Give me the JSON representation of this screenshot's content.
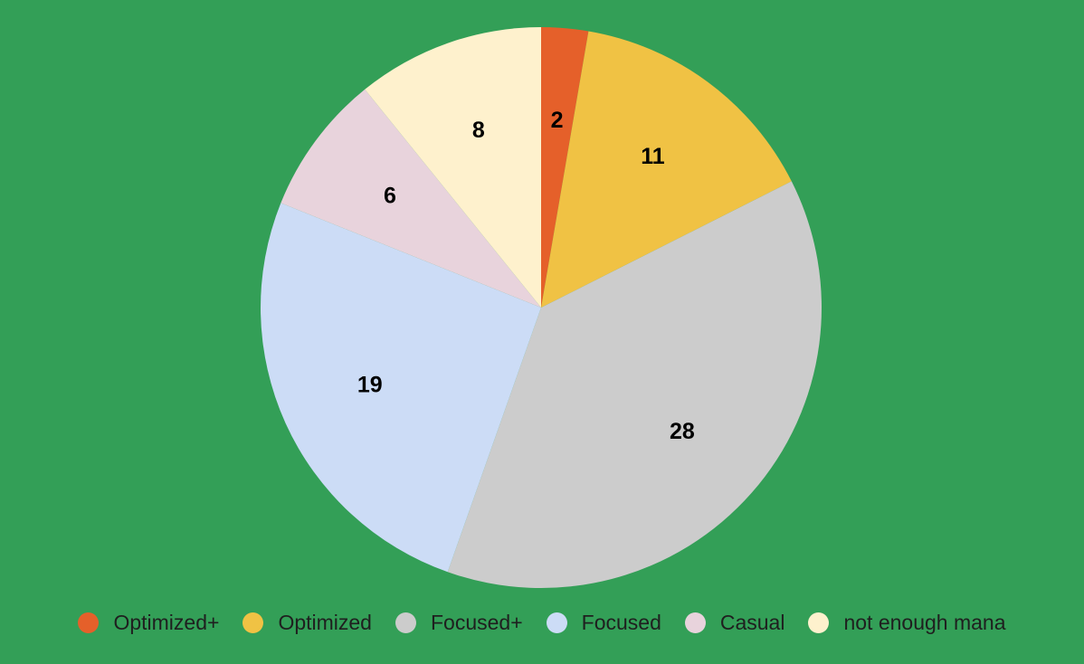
{
  "chart_data": {
    "type": "pie",
    "title": "",
    "legend_position": "bottom",
    "background_color": "#339f57",
    "categories": [
      "Optimized+",
      "Optimized",
      "Focused+",
      "Focused",
      "Casual",
      "not enough mana"
    ],
    "values": [
      2,
      11,
      28,
      19,
      6,
      8
    ],
    "colors": [
      "#e5602a",
      "#f0c244",
      "#cccccc",
      "#ccdcf6",
      "#e8d3dc",
      "#fef1cd"
    ],
    "data_labels": [
      "2",
      "11",
      "28",
      "19",
      "6",
      "8"
    ]
  }
}
